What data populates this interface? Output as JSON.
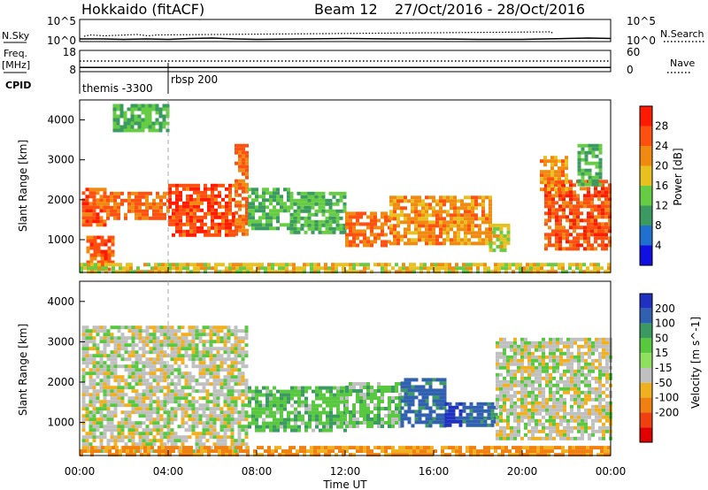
{
  "header": {
    "radar": "Hokkaido (fitACF)",
    "beam": "Beam 12",
    "dates": "27/Oct/2016 - 28/Oct/2016"
  },
  "left_labels": {
    "nsky": "N.Sky",
    "freq_top": "Freq.",
    "freq_unit": "[MHz]",
    "cpid": "CPID"
  },
  "right_labels": {
    "nsearch": "N.Search",
    "nave": "Nave"
  },
  "chart_data": [
    {
      "type": "line",
      "panel": "noise",
      "left_axis": {
        "ticks": [
          "10^5",
          "10^0"
        ]
      },
      "right_axis": {
        "ticks": [
          "10^5",
          "10^0"
        ]
      },
      "series": [
        {
          "name": "N.Sky",
          "style": "solid",
          "x": [
            0,
            1,
            2,
            3,
            4,
            5,
            6,
            7,
            8,
            10,
            12,
            14,
            16,
            18,
            20,
            21,
            22,
            23,
            24
          ],
          "log_y": [
            0.6,
            0.6,
            0.5,
            0.6,
            0.5,
            0.7,
            0.8,
            0.6,
            0.5,
            0.6,
            0.7,
            0.6,
            0.6,
            0.5,
            0.5,
            0.6,
            0.7,
            0.8,
            0.7
          ]
        },
        {
          "name": "N.Search",
          "style": "dotted",
          "x": [
            0.2,
            0.5,
            0.8,
            1.1,
            2.6,
            3.1,
            3.5,
            21.3,
            21.4
          ],
          "log_y": [
            1.2,
            1.5,
            1.4,
            1.3,
            1.6,
            1.3,
            1.5,
            2.2,
            1.8
          ]
        }
      ]
    },
    {
      "type": "line",
      "panel": "frequency",
      "left_axis": {
        "ticks": [
          "18",
          "8"
        ]
      },
      "right_axis": {
        "ticks": [
          "60",
          "0"
        ]
      },
      "series": [
        {
          "name": "Freq.",
          "style": "solid",
          "x": [
            0,
            24
          ],
          "y": [
            10,
            10
          ]
        },
        {
          "name": "Nave",
          "style": "dotted",
          "x": [
            0,
            24
          ],
          "y": [
            30,
            30
          ]
        }
      ]
    },
    {
      "type": "table",
      "panel": "cpid",
      "segments": [
        {
          "start": 0,
          "label": "themis -3300"
        },
        {
          "start": 4.0,
          "label": "rbsp 200"
        }
      ]
    },
    {
      "type": "heatmap",
      "panel": "power",
      "ylabel": "Slant Range [km]",
      "xlim": [
        0,
        24
      ],
      "ylim": [
        180,
        4500
      ],
      "yticks": [
        1000,
        2000,
        3000,
        4000
      ],
      "colorbar": {
        "label": "Power [dB]",
        "ticks": [
          4,
          8,
          12,
          16,
          20,
          24,
          28
        ],
        "colors": [
          "#1010e0",
          "#2070d0",
          "#3a9a60",
          "#66cc44",
          "#e8c020",
          "#f08a10",
          "#ff5010",
          "#ff1a00"
        ]
      },
      "regions": [
        {
          "t": [
            0.1,
            1.2
          ],
          "r": [
            1400,
            2300
          ],
          "level": 26
        },
        {
          "t": [
            1.2,
            4.0
          ],
          "r": [
            1500,
            2200
          ],
          "level": 24
        },
        {
          "t": [
            4.0,
            7.0
          ],
          "r": [
            1100,
            2400
          ],
          "level": 27
        },
        {
          "t": [
            7.0,
            7.6
          ],
          "r": [
            1100,
            3400
          ],
          "level": 24
        },
        {
          "t": [
            0.3,
            1.5
          ],
          "r": [
            250,
            1100
          ],
          "level": 25
        },
        {
          "t": [
            7.6,
            9.5
          ],
          "r": [
            1300,
            2300
          ],
          "level": 12
        },
        {
          "t": [
            9.5,
            12.0
          ],
          "r": [
            1200,
            2200
          ],
          "level": 12
        },
        {
          "t": [
            12.0,
            14.0
          ],
          "r": [
            900,
            1700
          ],
          "level": 24
        },
        {
          "t": [
            14.0,
            18.5
          ],
          "r": [
            900,
            2100
          ],
          "level": 22
        },
        {
          "t": [
            18.5,
            19.4
          ],
          "r": [
            700,
            1400
          ],
          "level": 18
        },
        {
          "t": [
            21.0,
            24.0
          ],
          "r": [
            800,
            2500
          ],
          "level": 26
        },
        {
          "t": [
            20.8,
            22.0
          ],
          "r": [
            2300,
            3100
          ],
          "level": 22
        },
        {
          "t": [
            22.5,
            23.5
          ],
          "r": [
            2400,
            3400
          ],
          "level": 12
        },
        {
          "t": [
            1.5,
            4.0
          ],
          "r": [
            3700,
            4400
          ],
          "level": 12
        },
        {
          "t": [
            0.0,
            24.0
          ],
          "r": [
            200,
            420
          ],
          "level": 18
        }
      ]
    },
    {
      "type": "heatmap",
      "panel": "velocity",
      "xlabel": "Time UT",
      "ylabel": "Slant Range [km]",
      "xlim": [
        0,
        24
      ],
      "ylim": [
        180,
        4500
      ],
      "xticks": [
        "00:00",
        "04:00",
        "08:00",
        "12:00",
        "16:00",
        "20:00",
        "00:00"
      ],
      "yticks": [
        1000,
        2000,
        3000,
        4000
      ],
      "colorbar": {
        "label": "Velocity [m s^-1]",
        "ticks": [
          200,
          100,
          50,
          15,
          -15,
          -50,
          -100,
          -200
        ],
        "colors": [
          "#2030c0",
          "#3060b0",
          "#3a9a60",
          "#58c840",
          "#90e060",
          "#c0c0c0",
          "#f0b020",
          "#f08010",
          "#f04010",
          "#e00000"
        ]
      },
      "regions": [
        {
          "t": [
            0.1,
            7.6
          ],
          "r": [
            300,
            3400
          ],
          "v": 0
        },
        {
          "t": [
            7.6,
            12.0
          ],
          "r": [
            800,
            1900
          ],
          "v": 40
        },
        {
          "t": [
            12.0,
            14.5
          ],
          "r": [
            900,
            2000
          ],
          "v": 30
        },
        {
          "t": [
            14.5,
            16.5
          ],
          "r": [
            900,
            2100
          ],
          "v": 120
        },
        {
          "t": [
            16.5,
            17.3
          ],
          "r": [
            900,
            1500
          ],
          "v": 220
        },
        {
          "t": [
            17.3,
            18.8
          ],
          "r": [
            900,
            1500
          ],
          "v": 120
        },
        {
          "t": [
            18.8,
            24.0
          ],
          "r": [
            600,
            3100
          ],
          "v": 0
        },
        {
          "t": [
            0.0,
            24.0
          ],
          "r": [
            200,
            420
          ],
          "v": -60
        }
      ]
    }
  ]
}
